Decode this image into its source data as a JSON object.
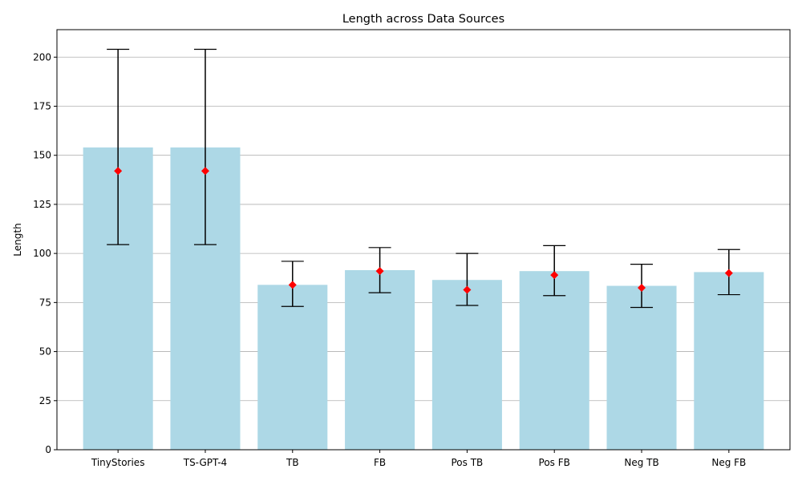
{
  "chart_data": {
    "type": "bar",
    "title": "Length across Data Sources",
    "xlabel": "",
    "ylabel": "Length",
    "ylim": [
      0,
      214
    ],
    "yticks": [
      0,
      25,
      50,
      75,
      100,
      125,
      150,
      175,
      200
    ],
    "grid": "horizontal",
    "categories": [
      "TinyStories",
      "TS-GPT-4",
      "TB",
      "FB",
      "Pos TB",
      "Pos FB",
      "Neg TB",
      "Neg FB"
    ],
    "mean": [
      154,
      154,
      84,
      91.5,
      86.5,
      91,
      83.5,
      90.5
    ],
    "median": [
      142,
      142,
      84,
      91,
      81.5,
      89,
      82.5,
      90
    ],
    "error_low": [
      104.5,
      104.5,
      73,
      80,
      73.5,
      78.5,
      72.5,
      79
    ],
    "error_high": [
      204,
      204,
      96,
      103,
      100,
      104,
      94.5,
      102
    ],
    "colors": {
      "bar": "#ADD8E6",
      "median_marker": "#FF0000",
      "error_bar": "#000000",
      "grid": "#b0b0b0"
    }
  }
}
